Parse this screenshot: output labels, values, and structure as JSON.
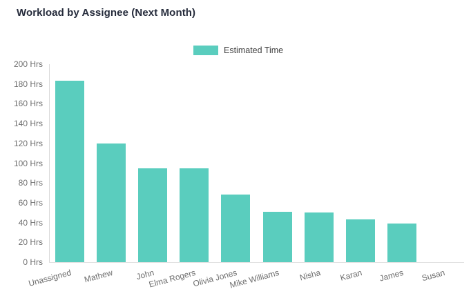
{
  "chart": {
    "title": "Workload by Assignee (Next Month)",
    "legend_label": "Estimated Time"
  },
  "chart_data": {
    "type": "bar",
    "title": "Workload by Assignee (Next Month)",
    "categories": [
      "Unassigned",
      "Mathew",
      "John",
      "Elma Rogers",
      "Olivia Jones",
      "Mike Williams",
      "Nisha",
      "Karan",
      "James",
      "Susan"
    ],
    "series": [
      {
        "name": "Estimated Time",
        "values": [
          183,
          120,
          95,
          95,
          68,
          51,
          50,
          43,
          39,
          0
        ]
      }
    ],
    "xlabel": "",
    "ylabel": "",
    "y_unit": "Hrs",
    "ylim": [
      0,
      200
    ],
    "ytick_step": 20,
    "ytick_values": [
      0,
      20,
      40,
      60,
      80,
      100,
      120,
      140,
      160,
      180,
      200
    ],
    "ytick_labels": [
      "0 Hrs",
      "20 Hrs",
      "40 Hrs",
      "60 Hrs",
      "80 Hrs",
      "100 Hrs",
      "120 Hrs",
      "140 Hrs",
      "160 Hrs",
      "180 Hrs",
      "200 Hrs"
    ],
    "grid": false,
    "legend_position": "top",
    "bar_color": "#5acdbe"
  },
  "colors": {
    "bar": "#5acdbe",
    "title_text": "#252b3b",
    "legend_text": "#404040",
    "axis_text": "#6e6e6e",
    "y_axis_line": "#d9d9d9",
    "x_axis_line": "#e2e2e2",
    "background": "#ffffff"
  }
}
